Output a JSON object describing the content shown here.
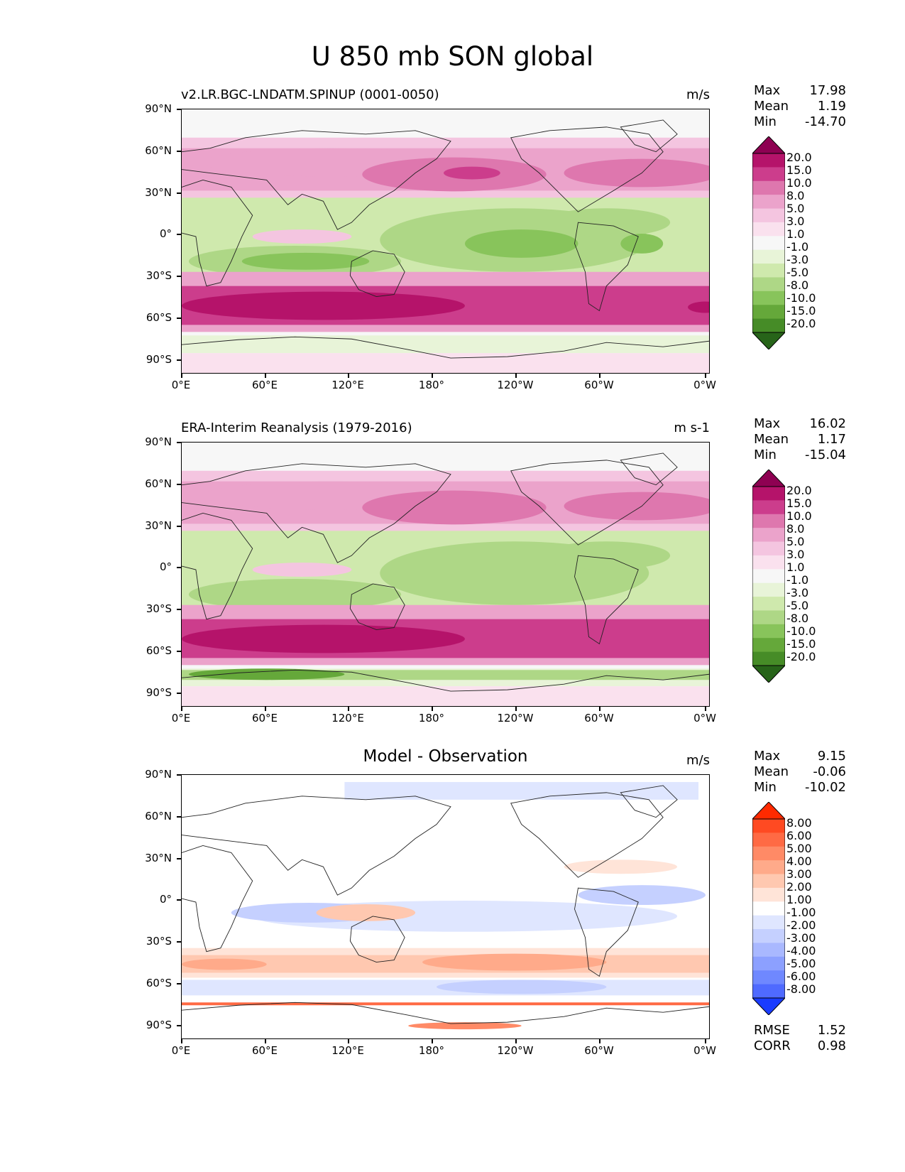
{
  "title": "U 850 mb SON global",
  "axes": {
    "lat_labels": [
      "90°N",
      "60°N",
      "30°N",
      "0°",
      "30°S",
      "60°S",
      "90°S"
    ],
    "lon_labels": [
      "0°E",
      "60°E",
      "120°E",
      "180°",
      "120°W",
      "60°W",
      "0°W"
    ]
  },
  "panels": [
    {
      "subtitle": "v2.LR.BGC-LNDATM.SPINUP (0001-0050)",
      "units": "m/s",
      "stats": {
        "max_label": "Max",
        "max": "17.98",
        "mean_label": "Mean",
        "mean": "1.19",
        "min_label": "Min",
        "min": "-14.70"
      },
      "colorbar": {
        "levels": [
          "20.0",
          "15.0",
          "10.0",
          "8.0",
          "5.0",
          "3.0",
          "1.0",
          "-1.0",
          "-3.0",
          "-5.0",
          "-8.0",
          "-10.0",
          "-15.0",
          "-20.0"
        ],
        "colors": [
          "#8e0152",
          "#b5136a",
          "#cc3d8c",
          "#de77ae",
          "#eba3cb",
          "#f4c5e0",
          "#fae1ee",
          "#f7f7f7",
          "#e8f4d8",
          "#cfe9ad",
          "#aed786",
          "#88c45b",
          "#65a83a",
          "#468c27",
          "#276419"
        ]
      }
    },
    {
      "subtitle": "ERA-Interim Reanalysis (1979-2016)",
      "units": "m s-1",
      "stats": {
        "max_label": "Max",
        "max": "16.02",
        "mean_label": "Mean",
        "mean": "1.17",
        "min_label": "Min",
        "min": "-15.04"
      },
      "colorbar": {
        "levels": [
          "20.0",
          "15.0",
          "10.0",
          "8.0",
          "5.0",
          "3.0",
          "1.0",
          "-1.0",
          "-3.0",
          "-5.0",
          "-8.0",
          "-10.0",
          "-15.0",
          "-20.0"
        ],
        "colors": [
          "#8e0152",
          "#b5136a",
          "#cc3d8c",
          "#de77ae",
          "#eba3cb",
          "#f4c5e0",
          "#fae1ee",
          "#f7f7f7",
          "#e8f4d8",
          "#cfe9ad",
          "#aed786",
          "#88c45b",
          "#65a83a",
          "#468c27",
          "#276419"
        ]
      }
    },
    {
      "subtitle": "Model - Observation",
      "units": "m/s",
      "stats": {
        "max_label": "Max",
        "max": "9.15",
        "mean_label": "Mean",
        "mean": "-0.06",
        "min_label": "Min",
        "min": "-10.02"
      },
      "colorbar": {
        "levels": [
          "8.00",
          "6.00",
          "5.00",
          "4.00",
          "3.00",
          "2.00",
          "1.00",
          "-1.00",
          "-2.00",
          "-3.00",
          "-4.00",
          "-5.00",
          "-6.00",
          "-8.00"
        ],
        "colors": [
          "#ff2a00",
          "#ff4a22",
          "#ff6a44",
          "#ff8a66",
          "#ffaa8a",
          "#ffc8b0",
          "#ffe4d8",
          "#ffffff",
          "#dfe6ff",
          "#c5d0ff",
          "#a9b8ff",
          "#8ca0ff",
          "#6f88ff",
          "#4f6aff",
          "#1a3cff"
        ]
      },
      "metrics": {
        "rmse_label": "RMSE",
        "rmse": "1.52",
        "corr_label": "CORR",
        "corr": "0.98"
      }
    }
  ]
}
